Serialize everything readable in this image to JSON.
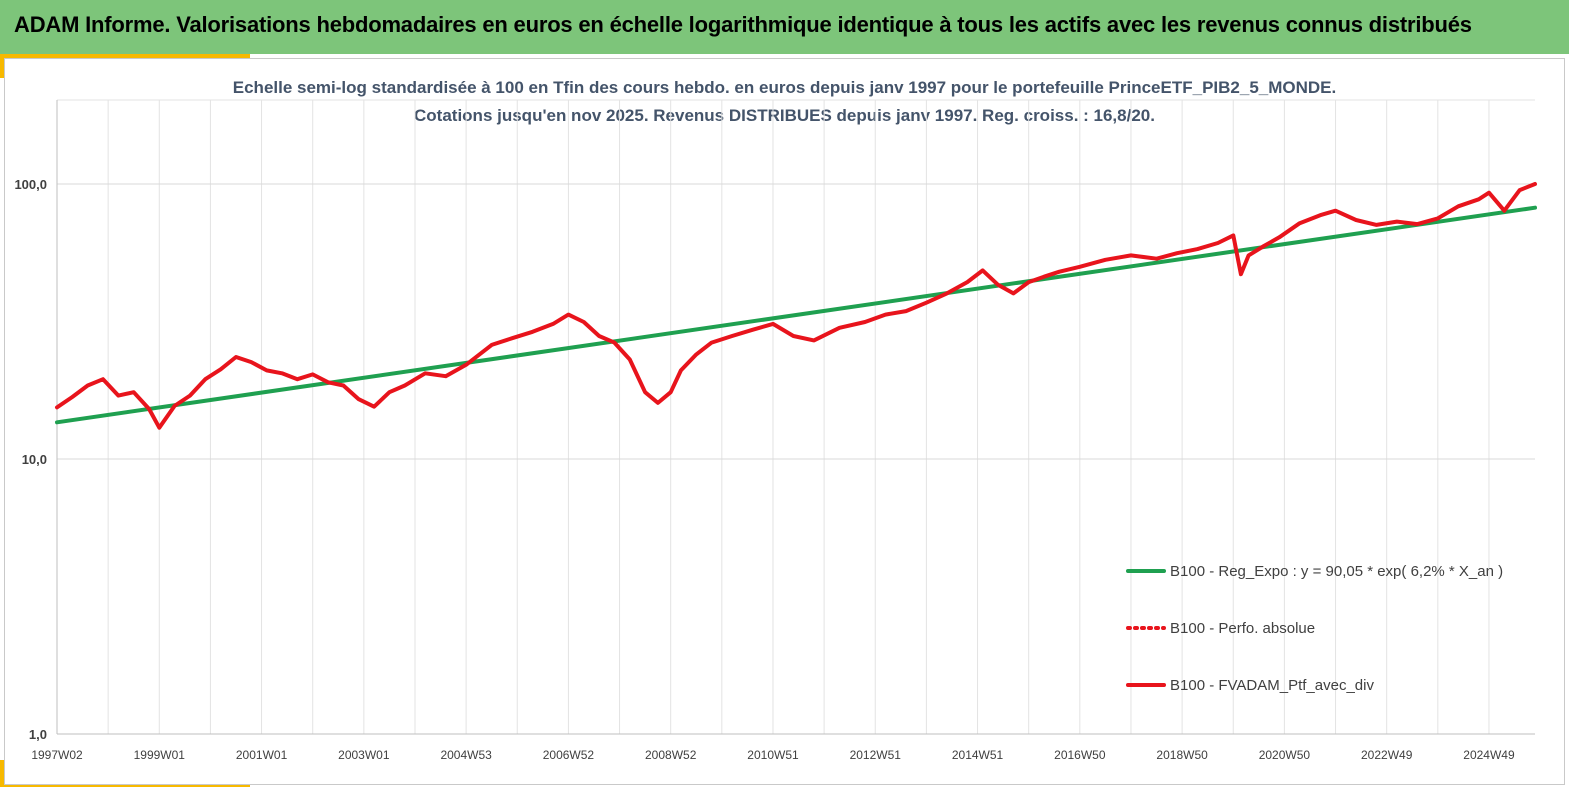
{
  "banner": {
    "title": "ADAM Informe. Valorisations hebdomadaires en euros en échelle logarithmique identique à tous les actifs avec les revenus connus distribués",
    "color": "#7dc57a",
    "accent_color": "#f7b900"
  },
  "chart_data": {
    "type": "line",
    "title_line1": "Echelle semi-log standardisée à 100 en Tfin des cours hebdo. en euros depuis janv 1997 pour le portefeuille PrinceETF_PIB2_5_MONDE.",
    "title_line2": "Cotations jusqu'en nov 2025. Revenus DISTRIBUES depuis janv 1997. Reg. croiss. : 16,8/20.",
    "y_scale": "log",
    "ylim": [
      1,
      100
    ],
    "y_ticks": [
      {
        "value": 100,
        "label": "100,0"
      },
      {
        "value": 10,
        "label": "10,0"
      },
      {
        "value": 1,
        "label": "1,0"
      }
    ],
    "xlim": [
      1997.0,
      2025.9
    ],
    "x_ticks": [
      {
        "x": 1997.0,
        "label": "1997W02"
      },
      {
        "x": 1999.0,
        "label": "1999W01"
      },
      {
        "x": 2001.0,
        "label": "2001W01"
      },
      {
        "x": 2003.0,
        "label": "2003W01"
      },
      {
        "x": 2005.0,
        "label": "2004W53"
      },
      {
        "x": 2007.0,
        "label": "2006W52"
      },
      {
        "x": 2009.0,
        "label": "2008W52"
      },
      {
        "x": 2011.0,
        "label": "2010W51"
      },
      {
        "x": 2013.0,
        "label": "2012W51"
      },
      {
        "x": 2015.0,
        "label": "2014W51"
      },
      {
        "x": 2017.0,
        "label": "2016W50"
      },
      {
        "x": 2019.0,
        "label": "2018W50"
      },
      {
        "x": 2021.0,
        "label": "2020W50"
      },
      {
        "x": 2023.0,
        "label": "2022W49"
      },
      {
        "x": 2025.0,
        "label": "2024W49"
      }
    ],
    "grid": true,
    "legend_position": "bottom-right",
    "series": [
      {
        "name": "B100 - Reg_Expo : y = 90,05 * exp( 6,2% *  X_an )",
        "color": "#1fa050",
        "style": "solid",
        "x": [
          1997.0,
          2025.9
        ],
        "y": [
          13.6,
          82.0
        ]
      },
      {
        "name": "B100 - Perfo. absolue",
        "color": "#e8141c",
        "style": "dotted",
        "x": [],
        "y": []
      },
      {
        "name": "B100 - FVADAM_Ptf_avec_div",
        "color": "#e8141c",
        "style": "solid",
        "x": [
          1997.0,
          1997.3,
          1997.6,
          1997.9,
          1998.2,
          1998.5,
          1998.8,
          1999.0,
          1999.3,
          1999.6,
          1999.9,
          2000.2,
          2000.5,
          2000.8,
          2001.1,
          2001.4,
          2001.7,
          2002.0,
          2002.3,
          2002.6,
          2002.9,
          2003.2,
          2003.5,
          2003.8,
          2004.2,
          2004.6,
          2005.0,
          2005.5,
          2005.9,
          2006.3,
          2006.7,
          2007.0,
          2007.3,
          2007.6,
          2007.9,
          2008.2,
          2008.5,
          2008.75,
          2009.0,
          2009.2,
          2009.5,
          2009.8,
          2010.2,
          2010.6,
          2011.0,
          2011.4,
          2011.8,
          2012.3,
          2012.8,
          2013.2,
          2013.6,
          2014.0,
          2014.4,
          2014.8,
          2015.1,
          2015.4,
          2015.7,
          2016.0,
          2016.3,
          2016.6,
          2017.0,
          2017.5,
          2018.0,
          2018.5,
          2018.9,
          2019.3,
          2019.7,
          2020.0,
          2020.15,
          2020.3,
          2020.6,
          2020.9,
          2021.3,
          2021.7,
          2022.0,
          2022.4,
          2022.8,
          2023.2,
          2023.6,
          2024.0,
          2024.4,
          2024.8,
          2025.0,
          2025.3,
          2025.6,
          2025.9
        ],
        "y": [
          15.4,
          16.8,
          18.5,
          19.5,
          17.0,
          17.5,
          15.2,
          13.0,
          15.6,
          17.0,
          19.5,
          21.2,
          23.5,
          22.5,
          21.0,
          20.5,
          19.5,
          20.3,
          19.0,
          18.5,
          16.5,
          15.5,
          17.5,
          18.5,
          20.5,
          20.0,
          22.0,
          26.0,
          27.5,
          29.0,
          31.0,
          33.5,
          31.5,
          28.0,
          26.5,
          23.0,
          17.5,
          16.0,
          17.5,
          21.0,
          24.0,
          26.5,
          28.0,
          29.5,
          31.0,
          28.0,
          27.0,
          30.0,
          31.5,
          33.5,
          34.5,
          37.0,
          40.0,
          44.0,
          48.5,
          43.0,
          40.0,
          44.0,
          46.0,
          48.0,
          50.0,
          53.0,
          55.0,
          53.5,
          56.0,
          58.0,
          61.0,
          65.0,
          47.0,
          55.0,
          59.5,
          64.0,
          72.0,
          77.0,
          80.0,
          74.0,
          71.0,
          73.0,
          71.5,
          75.0,
          83.0,
          88.0,
          93.0,
          80.0,
          95.0,
          100.0
        ]
      }
    ]
  }
}
